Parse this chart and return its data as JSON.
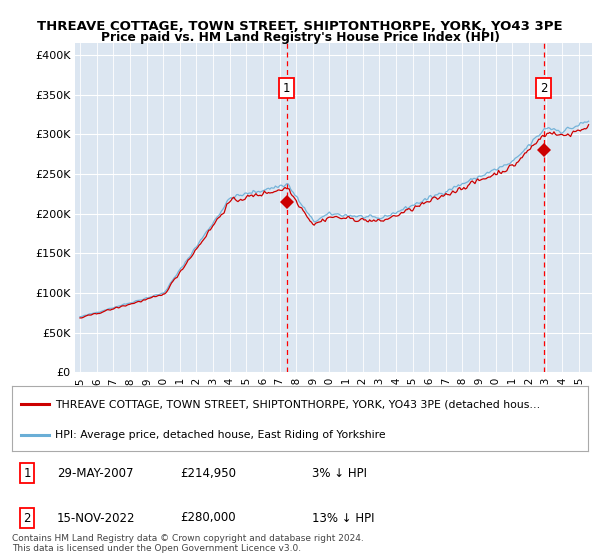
{
  "title_line1": "THREAVE COTTAGE, TOWN STREET, SHIPTONTHORPE, YORK, YO43 3PE",
  "title_line2": "Price paid vs. HM Land Registry's House Price Index (HPI)",
  "ylabel_ticks": [
    "£0",
    "£50K",
    "£100K",
    "£150K",
    "£200K",
    "£250K",
    "£300K",
    "£350K",
    "£400K"
  ],
  "ytick_values": [
    0,
    50000,
    100000,
    150000,
    200000,
    250000,
    300000,
    350000,
    400000
  ],
  "ylim": [
    0,
    415000
  ],
  "xlim_start": 1994.7,
  "xlim_end": 2025.8,
  "background_color": "#dce6f1",
  "hpi_color": "#6aaed6",
  "price_color": "#cc0000",
  "ann1_x": 2007.42,
  "ann1_y": 214950,
  "ann2_x": 2022.88,
  "ann2_y": 280000,
  "legend_line1": "THREAVE COTTAGE, TOWN STREET, SHIPTONTHORPE, YORK, YO43 3PE (detached hous…",
  "legend_line2": "HPI: Average price, detached house, East Riding of Yorkshire",
  "table_rows": [
    {
      "num": "1",
      "date": "29-MAY-2007",
      "price": "£214,950",
      "hpi": "3% ↓ HPI"
    },
    {
      "num": "2",
      "date": "15-NOV-2022",
      "price": "£280,000",
      "hpi": "13% ↓ HPI"
    }
  ],
  "footer": "Contains HM Land Registry data © Crown copyright and database right 2024.\nThis data is licensed under the Open Government Licence v3.0.",
  "xtick_years": [
    1995,
    1996,
    1997,
    1998,
    1999,
    2000,
    2001,
    2002,
    2003,
    2004,
    2005,
    2006,
    2007,
    2008,
    2009,
    2010,
    2011,
    2012,
    2013,
    2014,
    2015,
    2016,
    2017,
    2018,
    2019,
    2020,
    2021,
    2022,
    2023,
    2024,
    2025
  ]
}
